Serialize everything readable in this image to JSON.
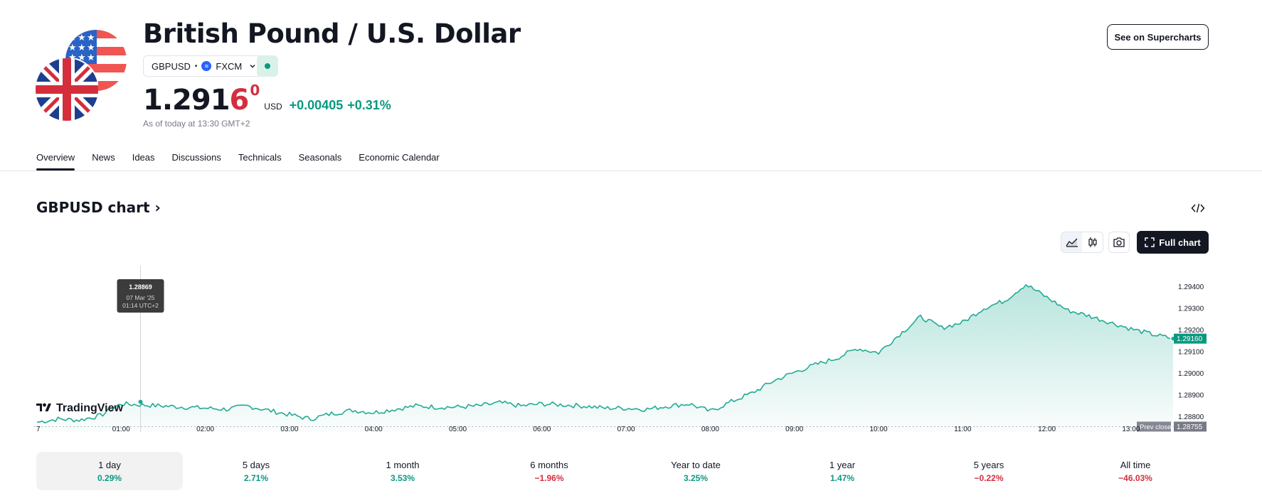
{
  "header": {
    "title": "British Pound / U.S. Dollar",
    "symbol": "GBPUSD",
    "separator": "•",
    "broker": "FXCM",
    "broker_logo_letter": "≈",
    "see_supercharts": "See on Supercharts"
  },
  "price": {
    "main": "1.291",
    "last_digit": "6",
    "superscript": "0",
    "currency": "USD",
    "change": "+0.00405",
    "change_pct": "+0.31%",
    "as_of": "As of today at 13:30 GMT+2"
  },
  "tabs": [
    "Overview",
    "News",
    "Ideas",
    "Discussions",
    "Technicals",
    "Seasonals",
    "Economic Calendar"
  ],
  "chart_section": {
    "title": "GBPUSD chart",
    "title_chevron": "›",
    "full_chart": "Full chart",
    "brand": "TradingView"
  },
  "chart_data": {
    "type": "area",
    "title": "GBPUSD chart",
    "x_tick_labels": [
      "7",
      "01:00",
      "02:00",
      "03:00",
      "04:00",
      "05:00",
      "06:00",
      "07:00",
      "08:00",
      "09:00",
      "10:00",
      "11:00",
      "12:00",
      "13:00"
    ],
    "y_tick_labels": [
      "1.29400",
      "1.29300",
      "1.29200",
      "1.29100",
      "1.29000",
      "1.28900",
      "1.28800"
    ],
    "ylim": [
      1.2875,
      1.2945
    ],
    "x_hours": [
      0,
      0.25,
      0.5,
      0.75,
      1,
      1.25,
      1.5,
      1.75,
      2,
      2.25,
      2.5,
      2.75,
      3,
      3.25,
      3.5,
      3.75,
      4,
      4.25,
      4.5,
      4.75,
      5,
      5.25,
      5.5,
      5.75,
      6,
      6.25,
      6.5,
      6.75,
      7,
      7.25,
      7.5,
      7.75,
      8,
      8.25,
      8.5,
      8.75,
      9,
      9.25,
      9.5,
      9.75,
      10,
      10.25,
      10.5,
      10.75,
      11,
      11.25,
      11.5,
      11.75,
      12,
      12.25,
      12.5,
      12.75,
      13,
      13.25,
      13.5
    ],
    "values": [
      1.28775,
      1.2879,
      1.28785,
      1.28805,
      1.2886,
      1.28855,
      1.2885,
      1.28845,
      1.2884,
      1.28835,
      1.2885,
      1.2883,
      1.2881,
      1.2879,
      1.28815,
      1.2883,
      1.2882,
      1.28835,
      1.2885,
      1.28845,
      1.28845,
      1.2885,
      1.28865,
      1.2885,
      1.2886,
      1.28855,
      1.2885,
      1.2884,
      1.2884,
      1.28835,
      1.2885,
      1.2886,
      1.28825,
      1.2887,
      1.2891,
      1.28965,
      1.29005,
      1.2904,
      1.2907,
      1.29115,
      1.29095,
      1.2918,
      1.2926,
      1.2921,
      1.29235,
      1.293,
      1.29335,
      1.2941,
      1.2935,
      1.2929,
      1.29265,
      1.29235,
      1.29205,
      1.2918,
      1.2916
    ],
    "last_price": "1.29160",
    "prev_close_label": "Prev close",
    "prev_close": "1.28755",
    "tooltip": {
      "value": "1.28869",
      "date": "07 Mar '25",
      "time": "01:14 UTC+2",
      "x_hour": 1.23
    }
  },
  "periods": [
    {
      "label": "1 day",
      "value": "0.29%",
      "color": "#089981",
      "active": true
    },
    {
      "label": "5 days",
      "value": "2.71%",
      "color": "#089981",
      "active": false
    },
    {
      "label": "1 month",
      "value": "3.53%",
      "color": "#089981",
      "active": false
    },
    {
      "label": "6 months",
      "value": "−1.96%",
      "color": "#d32f3f",
      "active": false
    },
    {
      "label": "Year to date",
      "value": "3.25%",
      "color": "#089981",
      "active": false
    },
    {
      "label": "1 year",
      "value": "1.47%",
      "color": "#089981",
      "active": false
    },
    {
      "label": "5 years",
      "value": "−0.22%",
      "color": "#d32f3f",
      "active": false
    },
    {
      "label": "All time",
      "value": "−46.03%",
      "color": "#d32f3f",
      "active": false
    }
  ],
  "colors": {
    "up": "#089981",
    "down": "#d32f3f",
    "line": "#22ab94",
    "text": "#131722"
  }
}
